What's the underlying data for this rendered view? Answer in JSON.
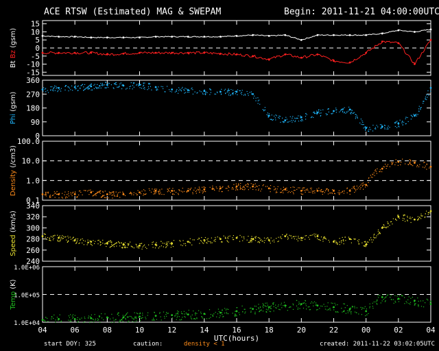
{
  "header": {
    "title": "ACE RTSW (Estimated) MAG & SWEPAM",
    "begin": "Begin: 2011-11-21 04:00:00UTC"
  },
  "footer": {
    "start_doy": "start DOY: 325",
    "caution": "caution:",
    "density_note": "density < 1",
    "created": "created: 2011-11-22 03:02:05UTC"
  },
  "colors": {
    "bt": "#ffffff",
    "bz": "#ff2020",
    "phi": "#20b8ff",
    "density": "#ff8c1a",
    "speed": "#e8e030",
    "temp": "#20c020",
    "axes": "#ffffff"
  },
  "chart_data": [
    {
      "type": "line",
      "panel": "mag",
      "ylabel": [
        "Bt",
        "Bz",
        "(gsm)"
      ],
      "yticks": [
        "15",
        "10",
        "5",
        "0",
        "-5",
        "-10",
        "-15"
      ],
      "ylim": [
        -17,
        17
      ],
      "dashed_reference": [
        0
      ],
      "x_hours": [
        0,
        1,
        2,
        3,
        4,
        5,
        6,
        7,
        8,
        9,
        10,
        11,
        12,
        13,
        14,
        15,
        16,
        17,
        18,
        19,
        20,
        21,
        22,
        23,
        24
      ],
      "series": [
        {
          "name": "Bt",
          "values": [
            7.5,
            7,
            7,
            6.5,
            6.5,
            6.5,
            6.5,
            7,
            7,
            7,
            7,
            7,
            7.5,
            8,
            7.5,
            8,
            5,
            8,
            8,
            8,
            8,
            9,
            11,
            10,
            11.5
          ]
        },
        {
          "name": "Bz",
          "values": [
            -3,
            -3,
            -3,
            -3,
            -4,
            -3.5,
            -3,
            -3,
            -3,
            -3,
            -3,
            -3.5,
            -4,
            -5,
            -7,
            -4,
            -6,
            -4,
            -8,
            -9,
            -3,
            4,
            3,
            -10,
            5
          ]
        }
      ]
    },
    {
      "type": "scatter",
      "panel": "phi",
      "ylabel": [
        "Phi",
        "(gsm)"
      ],
      "yticks": [
        "360",
        "270",
        "180",
        "90",
        "0"
      ],
      "ylim": [
        0,
        360
      ],
      "x_hours": [
        0,
        1,
        2,
        3,
        4,
        5,
        6,
        7,
        8,
        9,
        10,
        11,
        12,
        13,
        14,
        15,
        16,
        17,
        18,
        19,
        20,
        21,
        22,
        23,
        24
      ],
      "series": [
        {
          "name": "Phi",
          "values": [
            300,
            310,
            315,
            320,
            330,
            325,
            330,
            315,
            300,
            295,
            290,
            285,
            285,
            270,
            130,
            100,
            120,
            150,
            160,
            170,
            50,
            60,
            80,
            130,
            310
          ]
        }
      ]
    },
    {
      "type": "scatter",
      "panel": "density",
      "ylabel": [
        "Density",
        "(/cm3)"
      ],
      "yticks": [
        "100.0",
        "10.0",
        "1.0",
        "0.1"
      ],
      "ylim": [
        0.1,
        100
      ],
      "yscale": "log",
      "dashed_reference": [
        10,
        1
      ],
      "x_hours": [
        0,
        1,
        2,
        3,
        4,
        5,
        6,
        7,
        8,
        9,
        10,
        11,
        12,
        13,
        14,
        15,
        16,
        17,
        18,
        19,
        20,
        21,
        22,
        23,
        24
      ],
      "series": [
        {
          "name": "Density",
          "values": [
            0.2,
            0.2,
            0.2,
            0.25,
            0.2,
            0.2,
            0.25,
            0.3,
            0.3,
            0.3,
            0.35,
            0.4,
            0.5,
            0.5,
            0.4,
            0.35,
            0.3,
            0.3,
            0.3,
            0.3,
            0.6,
            4,
            9,
            8,
            5
          ]
        }
      ]
    },
    {
      "type": "scatter",
      "panel": "speed",
      "ylabel": [
        "Speed",
        "(km/s)"
      ],
      "yticks": [
        "340",
        "320",
        "300",
        "280",
        "260",
        "240"
      ],
      "ylim": [
        240,
        340
      ],
      "x_hours": [
        0,
        1,
        2,
        3,
        4,
        5,
        6,
        7,
        8,
        9,
        10,
        11,
        12,
        13,
        14,
        15,
        16,
        17,
        18,
        19,
        20,
        21,
        22,
        23,
        24
      ],
      "series": [
        {
          "name": "Speed",
          "values": [
            285,
            282,
            278,
            275,
            272,
            270,
            268,
            270,
            272,
            275,
            278,
            280,
            282,
            280,
            278,
            285,
            282,
            285,
            275,
            280,
            270,
            300,
            320,
            315,
            330
          ]
        }
      ]
    },
    {
      "type": "scatter",
      "panel": "temp",
      "ylabel": [
        "Temp",
        "(K)"
      ],
      "yticks": [
        "1.0E+06",
        "1.0E+05",
        "1.0E+04"
      ],
      "ylim": [
        10000,
        1000000
      ],
      "yscale": "log",
      "dashed_reference": [
        100000
      ],
      "x_hours": [
        0,
        1,
        2,
        3,
        4,
        5,
        6,
        7,
        8,
        9,
        10,
        11,
        12,
        13,
        14,
        15,
        16,
        17,
        18,
        19,
        20,
        21,
        22,
        23,
        24
      ],
      "series": [
        {
          "name": "Temp",
          "values": [
            12000,
            13000,
            13000,
            14000,
            15000,
            15000,
            16000,
            17000,
            18000,
            19000,
            20000,
            22000,
            25000,
            30000,
            35000,
            40000,
            45000,
            40000,
            35000,
            30000,
            25000,
            80000,
            70000,
            60000,
            45000
          ]
        }
      ]
    },
    {
      "type": "axis",
      "panel": "time",
      "xlabel": "UTC(hours)",
      "xticks": [
        "04",
        "06",
        "08",
        "10",
        "12",
        "14",
        "16",
        "18",
        "20",
        "22",
        "00",
        "02",
        "04"
      ]
    }
  ]
}
